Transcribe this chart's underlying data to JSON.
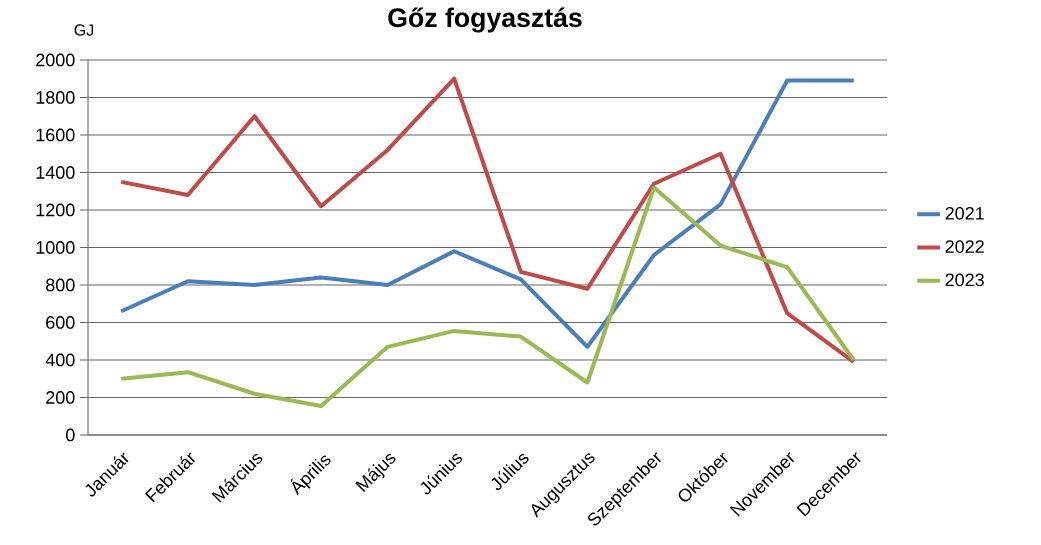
{
  "chart_data": {
    "type": "line",
    "title": "Gőz fogyasztás",
    "ylabel": "GJ",
    "categories": [
      "Január",
      "Február",
      "Március",
      "Április",
      "Május",
      "Június",
      "Július",
      "Augusztus",
      "Szeptember",
      "Október",
      "November",
      "December"
    ],
    "series": [
      {
        "name": "2021",
        "color": "#4a7ebb",
        "values": [
          660,
          820,
          800,
          840,
          800,
          980,
          830,
          470,
          960,
          1230,
          1890,
          1890
        ]
      },
      {
        "name": "2022",
        "color": "#be4b48",
        "values": [
          1350,
          1280,
          1700,
          1220,
          1520,
          1900,
          870,
          780,
          1340,
          1500,
          650,
          390
        ]
      },
      {
        "name": "2023",
        "color": "#98b954",
        "values": [
          300,
          335,
          220,
          155,
          470,
          555,
          525,
          280,
          1320,
          1010,
          895,
          400
        ]
      }
    ],
    "ylim": [
      0,
      2000
    ],
    "yticks": [
      0,
      200,
      400,
      600,
      800,
      1000,
      1200,
      1400,
      1600,
      1800,
      2000
    ],
    "grid": "y",
    "legend": "right",
    "marker": "none",
    "line_style": "solid"
  }
}
